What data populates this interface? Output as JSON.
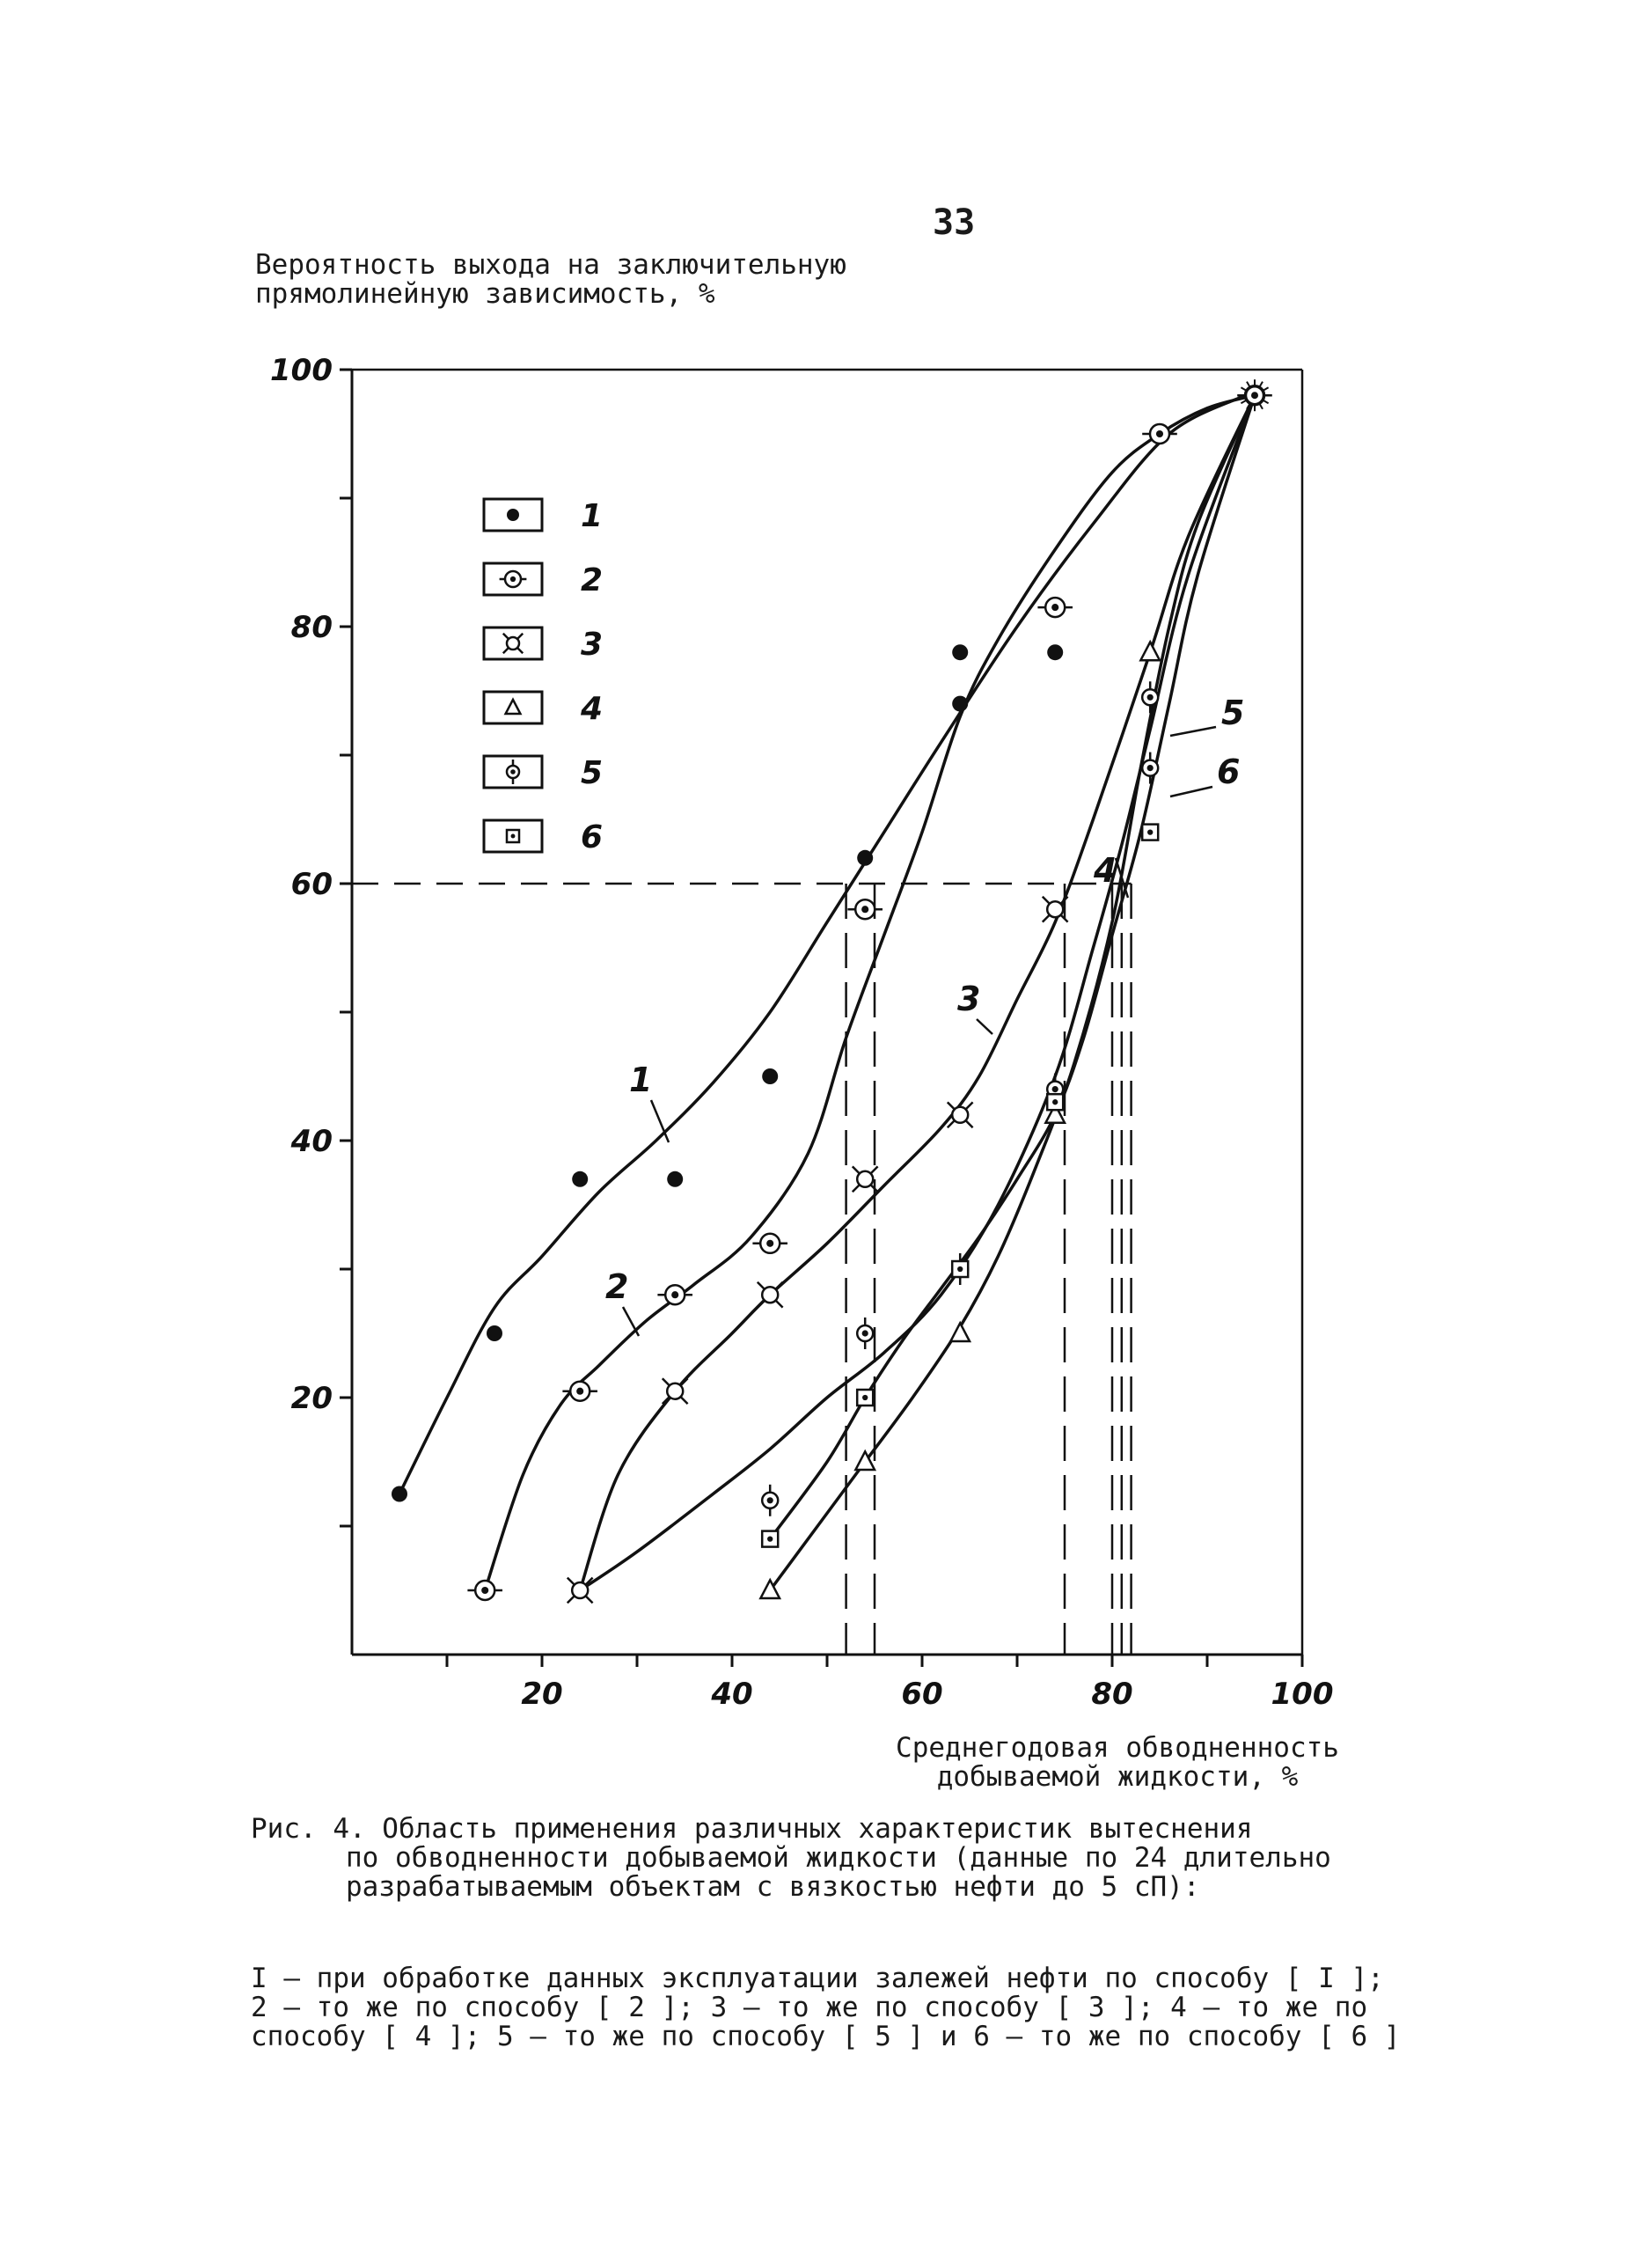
{
  "page_number": "33",
  "caption": {
    "head": "Рис. 4. Область применения различных характеристик вытеснения",
    "body": "по обводненности добываемой жидкости (данные по 24 длительно разрабатываемым объектам с вязкостью нефти до 5 сП):"
  },
  "footnote": "I – при обработке данных эксплуатации залежей нефти по способу [ I ];\n2 – то же по способу [ 2 ]; 3 – то же по способу [ 3 ]; 4 – то же по\nспособу [ 4 ]; 5 – то же по способу [ 5 ] и 6 – то же по способу [ 6 ]",
  "chart_data": {
    "type": "line",
    "title": "",
    "xlabel": "Среднегодовая обводненность добываемой жидкости, %",
    "ylabel": "Вероятность выхода на заключительную прямолинейную зависимость, %",
    "xlim": [
      0,
      100
    ],
    "ylim": [
      0,
      100
    ],
    "x_ticks": [
      20,
      40,
      60,
      80,
      100
    ],
    "y_ticks": [
      20,
      40,
      60,
      80,
      100
    ],
    "grid": false,
    "legend_position": "top-left",
    "legend": [
      "1",
      "2",
      "3",
      "4",
      "5",
      "6"
    ],
    "curve_labels": [
      "1",
      "2",
      "3",
      "4",
      "5",
      "6"
    ],
    "reference_line": {
      "y": 60,
      "style": "dashed"
    },
    "threshold_x": [
      52,
      55,
      75,
      80,
      81,
      82
    ],
    "series": [
      {
        "name": "1",
        "marker": "dot",
        "points": [
          [
            5,
            12.5
          ],
          [
            15,
            25
          ],
          [
            24,
            37
          ],
          [
            34,
            37
          ],
          [
            44,
            45
          ],
          [
            54,
            62
          ],
          [
            64,
            74
          ],
          [
            64,
            78
          ],
          [
            74,
            78
          ]
        ],
        "curve": [
          [
            5,
            12.5
          ],
          [
            10,
            20
          ],
          [
            15,
            27
          ],
          [
            20,
            31
          ],
          [
            26,
            36
          ],
          [
            32,
            40
          ],
          [
            38,
            44.5
          ],
          [
            44,
            50
          ],
          [
            50,
            57
          ],
          [
            56,
            64
          ],
          [
            62,
            71
          ],
          [
            70,
            80
          ],
          [
            78,
            88
          ],
          [
            86,
            95
          ],
          [
            94,
            98
          ]
        ]
      },
      {
        "name": "2",
        "marker": "circled-dot",
        "points": [
          [
            14,
            5
          ],
          [
            24,
            20.5
          ],
          [
            34,
            28
          ],
          [
            44,
            32
          ],
          [
            54,
            58
          ],
          [
            74,
            81.5
          ],
          [
            85,
            95
          ],
          [
            95,
            98
          ]
        ],
        "curve": [
          [
            14,
            5
          ],
          [
            18,
            14
          ],
          [
            22,
            19.5
          ],
          [
            26,
            22.5
          ],
          [
            31,
            26
          ],
          [
            36,
            28.8
          ],
          [
            42,
            32.5
          ],
          [
            48,
            39
          ],
          [
            52,
            48
          ],
          [
            56,
            56
          ],
          [
            60,
            64
          ],
          [
            64,
            73
          ],
          [
            68,
            79
          ],
          [
            74,
            86
          ],
          [
            80,
            92
          ],
          [
            85,
            95
          ],
          [
            90,
            97
          ],
          [
            95,
            98
          ]
        ]
      },
      {
        "name": "3",
        "marker": "crossed-circle",
        "points": [
          [
            24,
            5
          ],
          [
            34,
            20.5
          ],
          [
            44,
            28
          ],
          [
            54,
            37
          ],
          [
            64,
            42
          ],
          [
            74,
            58
          ]
        ],
        "curve": [
          [
            24,
            5
          ],
          [
            28,
            14
          ],
          [
            34,
            20.5
          ],
          [
            40,
            25
          ],
          [
            44,
            28
          ],
          [
            50,
            32
          ],
          [
            56,
            36.5
          ],
          [
            62,
            41
          ],
          [
            66,
            45
          ],
          [
            70,
            51
          ],
          [
            74,
            57
          ],
          [
            78,
            65
          ],
          [
            84,
            78
          ],
          [
            88,
            87
          ],
          [
            95,
            98
          ]
        ]
      },
      {
        "name": "4",
        "marker": "triangle",
        "points": [
          [
            44,
            5
          ],
          [
            54,
            15
          ],
          [
            64,
            25
          ],
          [
            74,
            42
          ],
          [
            84,
            78
          ]
        ],
        "curve": [
          [
            44,
            5
          ],
          [
            49,
            10
          ],
          [
            54,
            15
          ],
          [
            59,
            20
          ],
          [
            64,
            25.5
          ],
          [
            68,
            31
          ],
          [
            72,
            38
          ],
          [
            76,
            46
          ],
          [
            80,
            57
          ],
          [
            83,
            69
          ],
          [
            86,
            80
          ],
          [
            89,
            88
          ],
          [
            95,
            98
          ]
        ]
      },
      {
        "name": "5",
        "marker": "diamond-dot",
        "points": [
          [
            44,
            12
          ],
          [
            54,
            25
          ],
          [
            64,
            30
          ],
          [
            74,
            44
          ],
          [
            84,
            69
          ],
          [
            84,
            74.5
          ]
        ],
        "curve": [
          [
            24,
            5
          ],
          [
            30,
            8
          ],
          [
            38,
            12.5
          ],
          [
            44,
            16
          ],
          [
            50,
            20
          ],
          [
            56,
            23.5
          ],
          [
            62,
            28
          ],
          [
            68,
            35
          ],
          [
            74,
            45
          ],
          [
            78,
            55
          ],
          [
            81,
            63
          ],
          [
            84,
            72
          ],
          [
            88,
            84
          ],
          [
            95,
            98
          ]
        ]
      },
      {
        "name": "6",
        "marker": "square-dot",
        "points": [
          [
            44,
            9
          ],
          [
            54,
            20
          ],
          [
            64,
            30
          ],
          [
            74,
            43
          ],
          [
            84,
            64
          ]
        ],
        "curve": [
          [
            44,
            9
          ],
          [
            50,
            15
          ],
          [
            54,
            20
          ],
          [
            58,
            24.5
          ],
          [
            62,
            28.5
          ],
          [
            66,
            32.5
          ],
          [
            70,
            37
          ],
          [
            74,
            42
          ],
          [
            77,
            48
          ],
          [
            80,
            56
          ],
          [
            83,
            64
          ],
          [
            86,
            74
          ],
          [
            89,
            84
          ],
          [
            95,
            98
          ]
        ]
      }
    ]
  }
}
